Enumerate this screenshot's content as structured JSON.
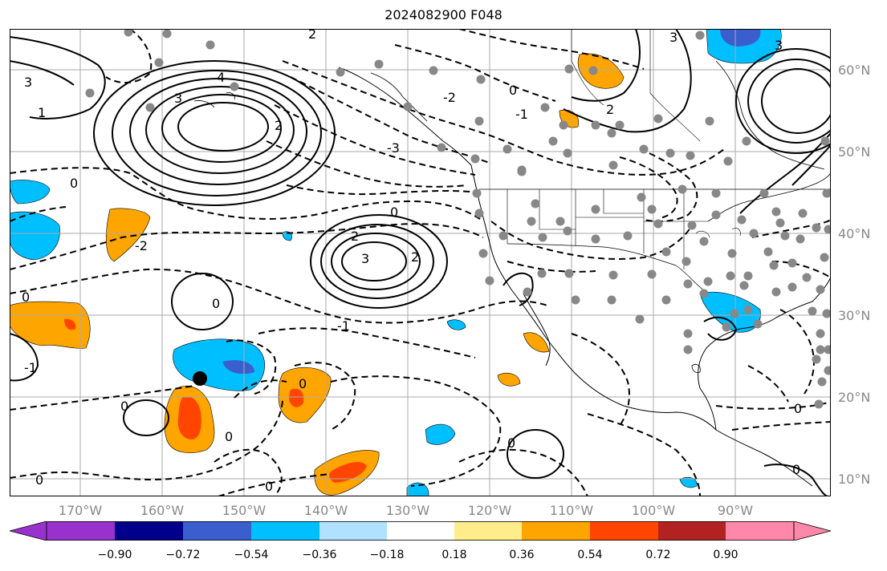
{
  "title": "2024082900 F048",
  "lat_labels": [
    "60°N",
    "50°N",
    "40°N",
    "30°N",
    "20°N",
    "10°N"
  ],
  "lon_labels": [
    "170°W",
    "160°W",
    "150°W",
    "140°W",
    "130°W",
    "120°W",
    "110°W",
    "100°W",
    "90°W"
  ],
  "contour_labels": {
    "neg1": "-1",
    "neg2": "-2",
    "neg3": "-3",
    "zero": "0",
    "pos1": "1",
    "pos2": "2",
    "pos3": "3",
    "pos4": "4"
  },
  "colorbar": {
    "ticks": [
      "−0.90",
      "−0.72",
      "−0.54",
      "−0.36",
      "−0.18",
      "0.18",
      "0.36",
      "0.54",
      "0.72",
      "0.90"
    ],
    "colors": [
      "#9932cc",
      "#00008b",
      "#3a5fcd",
      "#00bfff",
      "#b0e2ff",
      "#ffffff",
      "#ffec8b",
      "#ffa500",
      "#ff4500",
      "#b22222",
      "#ff88aa"
    ]
  },
  "colors": {
    "fill_orange": "#ffa500",
    "fill_red": "#ff4500",
    "fill_cyan": "#00bfff",
    "fill_blue": "#3a5fcd",
    "station_marker": "#888888",
    "storm_marker": "#000000"
  }
}
